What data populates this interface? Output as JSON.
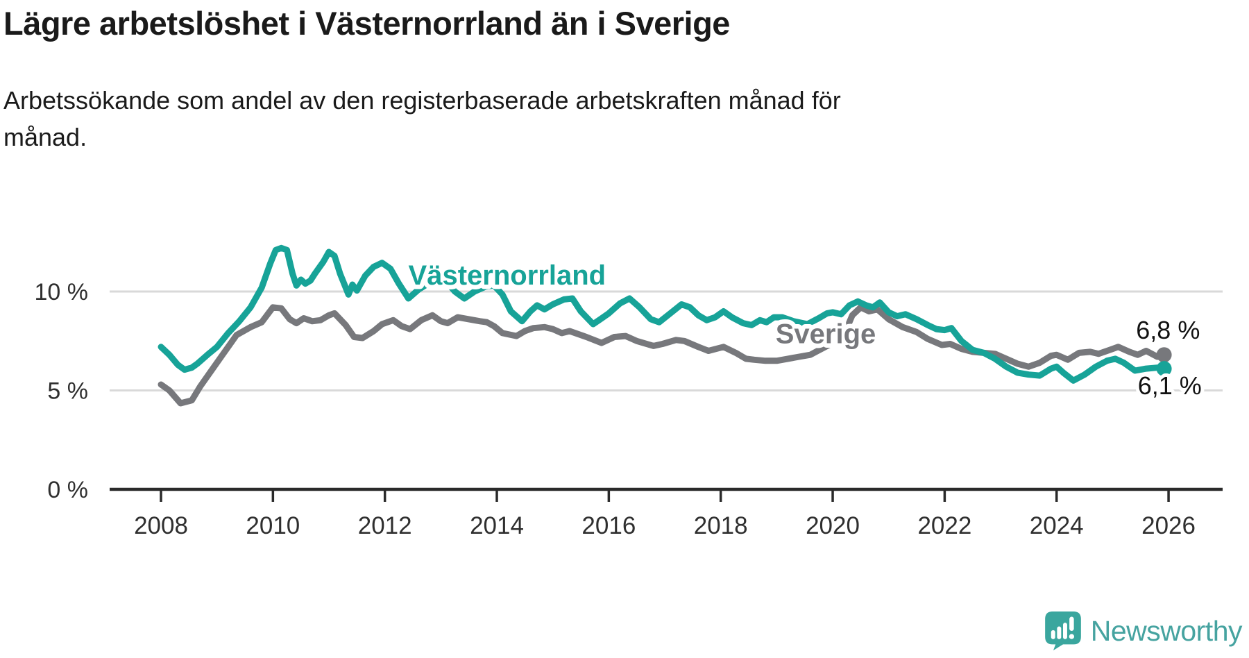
{
  "header": {
    "title": "Lägre arbetslöshet i Västernorrland än i Sverige",
    "subtitle": "Arbetssökande som andel av den registerbaserade arbetskraften månad för månad.",
    "subtitle_line1": "Arbetssökande som andel av den registerbaserade arbetskraften månad för",
    "subtitle_line2": "månad."
  },
  "branding": {
    "logo_text": "Newsworthy",
    "logo_color": "#46a3a0",
    "logo_icon": "bar-chart-speech-bubble-icon"
  },
  "chart_data": {
    "type": "line",
    "title": "Lägre arbetslöshet i Västernorrland än i Sverige",
    "subtitle": "Arbetssökande som andel av den registerbaserade arbetskraften månad för månad.",
    "grid": "horizontal-only",
    "colors": {
      "vasternorrland": "#17a398",
      "sverige": "#77787c",
      "gridline": "#d9d9d9",
      "axis": "#2a2a2a",
      "text": "#2f2f2f",
      "annotation_text": "#111111"
    },
    "x_axis": {
      "start": 2008,
      "end": 2026,
      "ticks": [
        2008,
        2010,
        2012,
        2014,
        2016,
        2018,
        2020,
        2022,
        2024,
        2026
      ]
    },
    "y_axis": {
      "unit": "%",
      "min": 0,
      "ticks": [
        {
          "value": 0,
          "label": "0 %"
        },
        {
          "value": 5,
          "label": "5 %"
        },
        {
          "value": 10,
          "label": "10 %"
        }
      ]
    },
    "series": [
      {
        "id": "sverige",
        "name": "Sverige",
        "color": "#77787c",
        "end_label": "6,8 %",
        "end_label_anchor": {
          "x": 2025.42,
          "y": 8.05
        },
        "name_label_anchor": {
          "x": 2018.98,
          "y": 7.85
        },
        "points": [
          [
            2008.0,
            5.3
          ],
          [
            2008.15,
            5.0
          ],
          [
            2008.35,
            4.35
          ],
          [
            2008.55,
            4.5
          ],
          [
            2008.7,
            5.2
          ],
          [
            2008.9,
            6.0
          ],
          [
            2009.1,
            6.8
          ],
          [
            2009.35,
            7.8
          ],
          [
            2009.6,
            8.2
          ],
          [
            2009.8,
            8.45
          ],
          [
            2010.0,
            9.2
          ],
          [
            2010.15,
            9.15
          ],
          [
            2010.3,
            8.6
          ],
          [
            2010.42,
            8.4
          ],
          [
            2010.55,
            8.65
          ],
          [
            2010.7,
            8.5
          ],
          [
            2010.85,
            8.55
          ],
          [
            2011.0,
            8.8
          ],
          [
            2011.1,
            8.9
          ],
          [
            2011.3,
            8.3
          ],
          [
            2011.45,
            7.7
          ],
          [
            2011.6,
            7.65
          ],
          [
            2011.8,
            8.0
          ],
          [
            2011.95,
            8.35
          ],
          [
            2012.15,
            8.55
          ],
          [
            2012.3,
            8.25
          ],
          [
            2012.45,
            8.1
          ],
          [
            2012.65,
            8.55
          ],
          [
            2012.85,
            8.8
          ],
          [
            2013.0,
            8.5
          ],
          [
            2013.12,
            8.4
          ],
          [
            2013.3,
            8.7
          ],
          [
            2013.5,
            8.6
          ],
          [
            2013.7,
            8.5
          ],
          [
            2013.82,
            8.45
          ],
          [
            2013.95,
            8.25
          ],
          [
            2014.1,
            7.9
          ],
          [
            2014.35,
            7.75
          ],
          [
            2014.5,
            8.0
          ],
          [
            2014.65,
            8.15
          ],
          [
            2014.85,
            8.2
          ],
          [
            2015.0,
            8.1
          ],
          [
            2015.16,
            7.9
          ],
          [
            2015.3,
            8.0
          ],
          [
            2015.45,
            7.85
          ],
          [
            2015.6,
            7.7
          ],
          [
            2015.87,
            7.4
          ],
          [
            2016.1,
            7.7
          ],
          [
            2016.3,
            7.75
          ],
          [
            2016.5,
            7.5
          ],
          [
            2016.8,
            7.25
          ],
          [
            2016.96,
            7.35
          ],
          [
            2017.2,
            7.55
          ],
          [
            2017.35,
            7.5
          ],
          [
            2017.6,
            7.2
          ],
          [
            2017.78,
            7.0
          ],
          [
            2018.05,
            7.2
          ],
          [
            2018.27,
            6.9
          ],
          [
            2018.45,
            6.6
          ],
          [
            2018.6,
            6.55
          ],
          [
            2018.8,
            6.5
          ],
          [
            2019.0,
            6.5
          ],
          [
            2019.2,
            6.6
          ],
          [
            2019.4,
            6.7
          ],
          [
            2019.6,
            6.8
          ],
          [
            2019.8,
            7.1
          ],
          [
            2020.0,
            7.4
          ],
          [
            2020.2,
            7.8
          ],
          [
            2020.35,
            8.8
          ],
          [
            2020.5,
            9.2
          ],
          [
            2020.65,
            9.0
          ],
          [
            2020.8,
            9.1
          ],
          [
            2021.0,
            8.6
          ],
          [
            2021.25,
            8.2
          ],
          [
            2021.5,
            7.95
          ],
          [
            2021.7,
            7.6
          ],
          [
            2021.95,
            7.3
          ],
          [
            2022.1,
            7.35
          ],
          [
            2022.3,
            7.1
          ],
          [
            2022.5,
            6.95
          ],
          [
            2022.7,
            6.9
          ],
          [
            2022.9,
            6.85
          ],
          [
            2023.1,
            6.6
          ],
          [
            2023.3,
            6.35
          ],
          [
            2023.5,
            6.2
          ],
          [
            2023.7,
            6.4
          ],
          [
            2023.9,
            6.75
          ],
          [
            2024.0,
            6.8
          ],
          [
            2024.2,
            6.55
          ],
          [
            2024.4,
            6.9
          ],
          [
            2024.6,
            6.95
          ],
          [
            2024.75,
            6.85
          ],
          [
            2024.95,
            7.05
          ],
          [
            2025.1,
            7.2
          ],
          [
            2025.3,
            6.95
          ],
          [
            2025.45,
            6.8
          ],
          [
            2025.6,
            7.0
          ],
          [
            2025.8,
            6.7
          ],
          [
            2025.92,
            6.8
          ]
        ]
      },
      {
        "id": "vasternorrland",
        "name": "Västernorrland",
        "color": "#17a398",
        "end_label": "6,1 %",
        "end_label_anchor": {
          "x": 2025.45,
          "y": 5.25
        },
        "name_label_anchor": {
          "x": 2012.42,
          "y": 10.8
        },
        "points": [
          [
            2008.0,
            7.2
          ],
          [
            2008.15,
            6.8
          ],
          [
            2008.3,
            6.3
          ],
          [
            2008.42,
            6.05
          ],
          [
            2008.55,
            6.15
          ],
          [
            2008.65,
            6.35
          ],
          [
            2008.85,
            6.85
          ],
          [
            2009.0,
            7.2
          ],
          [
            2009.2,
            7.9
          ],
          [
            2009.4,
            8.5
          ],
          [
            2009.6,
            9.2
          ],
          [
            2009.8,
            10.2
          ],
          [
            2009.95,
            11.4
          ],
          [
            2010.05,
            12.1
          ],
          [
            2010.15,
            12.2
          ],
          [
            2010.25,
            12.1
          ],
          [
            2010.35,
            10.9
          ],
          [
            2010.42,
            10.3
          ],
          [
            2010.5,
            10.6
          ],
          [
            2010.58,
            10.4
          ],
          [
            2010.67,
            10.55
          ],
          [
            2010.75,
            10.9
          ],
          [
            2010.9,
            11.5
          ],
          [
            2011.0,
            12.0
          ],
          [
            2011.1,
            11.8
          ],
          [
            2011.2,
            10.9
          ],
          [
            2011.35,
            9.85
          ],
          [
            2011.42,
            10.35
          ],
          [
            2011.5,
            10.05
          ],
          [
            2011.65,
            10.8
          ],
          [
            2011.8,
            11.25
          ],
          [
            2011.95,
            11.45
          ],
          [
            2012.1,
            11.15
          ],
          [
            2012.25,
            10.4
          ],
          [
            2012.42,
            9.65
          ],
          [
            2012.6,
            10.1
          ],
          [
            2012.8,
            10.45
          ],
          [
            2012.95,
            10.65
          ],
          [
            2013.1,
            10.5
          ],
          [
            2013.25,
            10.0
          ],
          [
            2013.42,
            9.65
          ],
          [
            2013.6,
            10.0
          ],
          [
            2013.8,
            10.25
          ],
          [
            2013.95,
            10.3
          ],
          [
            2014.1,
            9.85
          ],
          [
            2014.25,
            9.0
          ],
          [
            2014.45,
            8.5
          ],
          [
            2014.6,
            9.0
          ],
          [
            2014.72,
            9.3
          ],
          [
            2014.85,
            9.1
          ],
          [
            2015.0,
            9.35
          ],
          [
            2015.2,
            9.6
          ],
          [
            2015.35,
            9.65
          ],
          [
            2015.5,
            9.0
          ],
          [
            2015.72,
            8.35
          ],
          [
            2015.85,
            8.6
          ],
          [
            2016.0,
            8.9
          ],
          [
            2016.2,
            9.4
          ],
          [
            2016.37,
            9.65
          ],
          [
            2016.55,
            9.2
          ],
          [
            2016.75,
            8.6
          ],
          [
            2016.9,
            8.45
          ],
          [
            2017.1,
            8.9
          ],
          [
            2017.3,
            9.35
          ],
          [
            2017.45,
            9.2
          ],
          [
            2017.6,
            8.8
          ],
          [
            2017.75,
            8.55
          ],
          [
            2017.9,
            8.7
          ],
          [
            2018.05,
            9.0
          ],
          [
            2018.2,
            8.7
          ],
          [
            2018.4,
            8.4
          ],
          [
            2018.55,
            8.3
          ],
          [
            2018.7,
            8.55
          ],
          [
            2018.82,
            8.45
          ],
          [
            2018.95,
            8.7
          ],
          [
            2019.1,
            8.7
          ],
          [
            2019.3,
            8.5
          ],
          [
            2019.55,
            8.35
          ],
          [
            2019.75,
            8.65
          ],
          [
            2019.9,
            8.9
          ],
          [
            2020.0,
            8.95
          ],
          [
            2020.15,
            8.85
          ],
          [
            2020.3,
            9.3
          ],
          [
            2020.45,
            9.5
          ],
          [
            2020.6,
            9.3
          ],
          [
            2020.72,
            9.2
          ],
          [
            2020.84,
            9.45
          ],
          [
            2021.0,
            8.95
          ],
          [
            2021.15,
            8.75
          ],
          [
            2021.3,
            8.85
          ],
          [
            2021.5,
            8.6
          ],
          [
            2021.7,
            8.3
          ],
          [
            2021.85,
            8.1
          ],
          [
            2022.0,
            8.05
          ],
          [
            2022.12,
            8.15
          ],
          [
            2022.3,
            7.5
          ],
          [
            2022.5,
            7.05
          ],
          [
            2022.7,
            6.9
          ],
          [
            2022.9,
            6.6
          ],
          [
            2023.1,
            6.2
          ],
          [
            2023.3,
            5.9
          ],
          [
            2023.5,
            5.8
          ],
          [
            2023.7,
            5.75
          ],
          [
            2023.9,
            6.1
          ],
          [
            2024.0,
            6.2
          ],
          [
            2024.12,
            5.9
          ],
          [
            2024.3,
            5.5
          ],
          [
            2024.5,
            5.8
          ],
          [
            2024.7,
            6.2
          ],
          [
            2024.9,
            6.5
          ],
          [
            2025.05,
            6.6
          ],
          [
            2025.2,
            6.4
          ],
          [
            2025.4,
            6.0
          ],
          [
            2025.6,
            6.1
          ],
          [
            2025.8,
            6.15
          ],
          [
            2025.92,
            6.1
          ]
        ]
      }
    ]
  }
}
